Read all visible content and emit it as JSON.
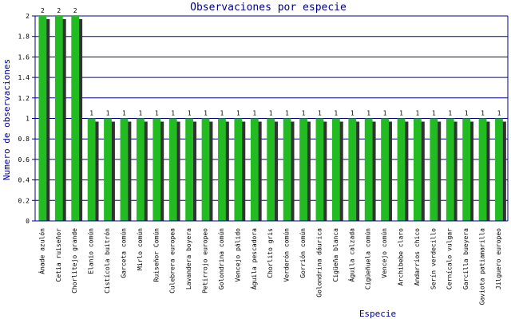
{
  "chart_data": {
    "type": "bar",
    "title": "Observaciones por especie",
    "xlabel": "Especie",
    "ylabel": "Numero de observaciones",
    "ylim": [
      0,
      2
    ],
    "yticks": [
      "0",
      "0.2",
      "0.4",
      "0.6",
      "0.8",
      "1",
      "1.2",
      "1.4",
      "1.6",
      "1.8",
      "2"
    ],
    "grid": true,
    "categories": [
      "Ánade azulón",
      "Cetia ruiseñor",
      "Chorlitejo grande",
      "Elanio común",
      "Cistícola buitrón",
      "Garceta común",
      "Mirlo común",
      "Ruiseñor Común",
      "Culebrera europea",
      "Lavandera boyera",
      "Petirrojo europeo",
      "Golondrina común",
      "Vencejo pálido",
      "Águila pescadora",
      "Chorlito gris",
      "Verderón común",
      "Gorrión común",
      "Golondrina dáurica",
      "Cigüeña blanca",
      "Águila calzada",
      "Cigüeñuela común",
      "Vencejo común",
      "Archibebe claro",
      "Andarríos chico",
      "Serín verdecillo",
      "Cernícalo vulgar",
      "Garcilla bueyera",
      "Gaviota patiamarilla",
      "Jilguero europeo"
    ],
    "values": [
      2,
      2,
      2,
      1,
      1,
      1,
      1,
      1,
      1,
      1,
      1,
      1,
      1,
      1,
      1,
      1,
      1,
      1,
      1,
      1,
      1,
      1,
      1,
      1,
      1,
      1,
      1,
      1,
      1
    ],
    "data_labels": [
      "2",
      "2",
      "2",
      "1",
      "1",
      "1",
      "1",
      "1",
      "1",
      "1",
      "1",
      "1",
      "1",
      "1",
      "1",
      "1",
      "1",
      "1",
      "1",
      "1",
      "1",
      "1",
      "1",
      "1",
      "1",
      "1",
      "1",
      "1",
      "1"
    ],
    "colors": {
      "bar": "#22bb22",
      "shadow": "#333333",
      "grid": "#00008b",
      "axis": "#00008b",
      "text": "#00008b"
    }
  }
}
